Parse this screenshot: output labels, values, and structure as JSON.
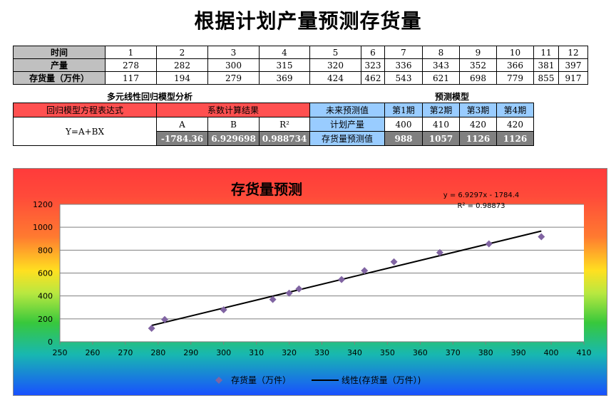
{
  "title": "根据计划产量预测存货量",
  "table": {
    "row_headers": [
      "时间",
      "产量",
      "存货量（万件）"
    ],
    "time": [
      "1",
      "2",
      "3",
      "4",
      "5",
      "6",
      "7",
      "8",
      "9",
      "10",
      "11",
      "12"
    ],
    "output": [
      "278",
      "282",
      "300",
      "315",
      "320",
      "323",
      "336",
      "343",
      "352",
      "366",
      "381",
      "397"
    ],
    "inventory": [
      "117",
      "194",
      "279",
      "369",
      "424",
      "462",
      "543",
      "621",
      "698",
      "779",
      "855",
      "917"
    ]
  },
  "regression": {
    "section_title": "多元线性回归模型分析",
    "formula_header": "回归模型方程表达式",
    "formula": "Y=A+BX",
    "result_header": "系数计算结果",
    "labels": [
      "A",
      "B",
      "R²"
    ],
    "values": [
      "-1784.36",
      "6.929698",
      "0.988734"
    ]
  },
  "forecast": {
    "section_title": "预测模型",
    "header": "未来预测值",
    "periods": [
      "第1期",
      "第2期",
      "第3期",
      "第4期"
    ],
    "plan_label": "计划产量",
    "plan_values": [
      "400",
      "410",
      "420",
      "420"
    ],
    "pred_label": "存货量预测值",
    "pred_values": [
      "988",
      "1057",
      "1126",
      "1126"
    ]
  },
  "chart_data": {
    "type": "scatter",
    "title": "存货量预测",
    "x": [
      278,
      282,
      300,
      315,
      320,
      323,
      336,
      343,
      352,
      366,
      381,
      397
    ],
    "series": [
      {
        "name": "存货量（万件）",
        "values": [
          117,
          194,
          279,
          369,
          424,
          462,
          543,
          621,
          698,
          779,
          855,
          917
        ],
        "color": "#8064a2"
      }
    ],
    "trendline": {
      "name": "线性(存货量（万件）)",
      "slope": 6.9297,
      "intercept": -1784.4,
      "x_range": [
        278,
        397
      ],
      "color": "#000000"
    },
    "equation": "y = 6.9297x - 1784.4",
    "r2": "R² = 0.98873",
    "xlim": [
      250,
      410
    ],
    "ylim": [
      0,
      1200
    ],
    "xticks": [
      250,
      260,
      270,
      280,
      290,
      300,
      310,
      320,
      330,
      340,
      350,
      360,
      370,
      380,
      390,
      400,
      410
    ],
    "yticks": [
      0,
      200,
      400,
      600,
      800,
      1000,
      1200
    ],
    "grid": true,
    "legend": "bottom"
  }
}
